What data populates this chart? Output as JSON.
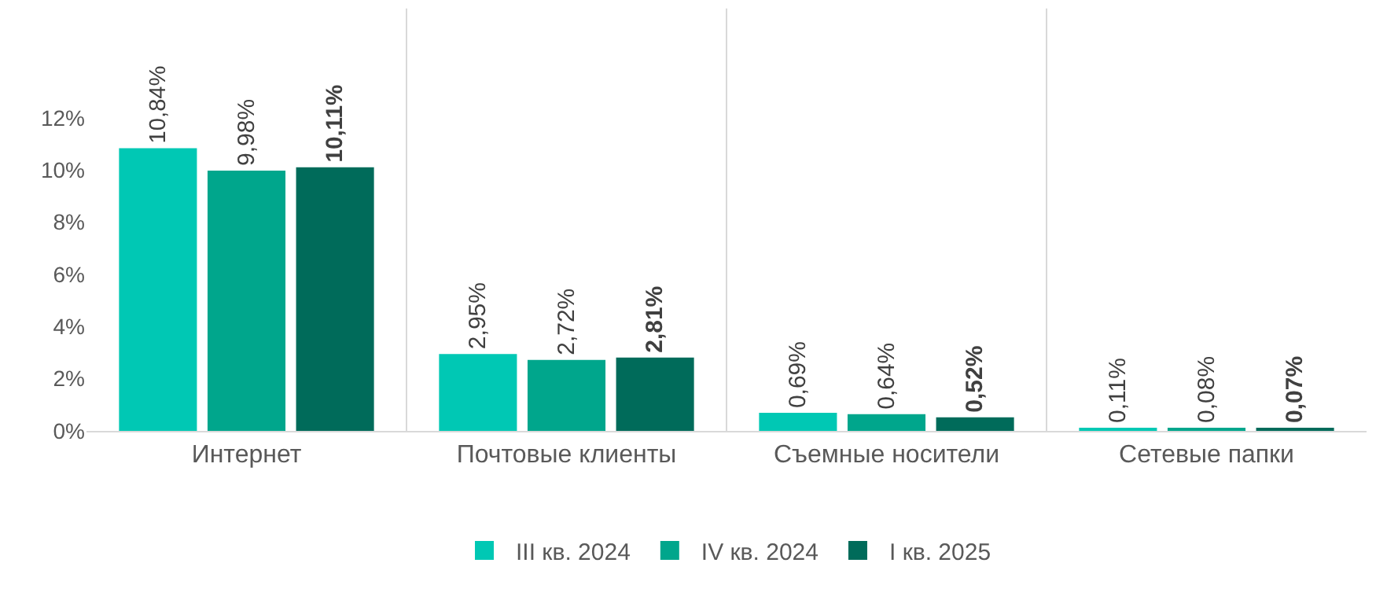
{
  "chart_data": {
    "type": "bar",
    "categories": [
      "Интернет",
      "Почтовые клиенты",
      "Съемные носители",
      "Сетевые папки"
    ],
    "series": [
      {
        "name": "III кв. 2024",
        "color": "#00c8b4",
        "values": [
          10.84,
          2.95,
          0.69,
          0.11
        ],
        "value_labels": [
          "10,84%",
          "2,95%",
          "0,69%",
          "0,11%"
        ]
      },
      {
        "name": "IV кв. 2024",
        "color": "#00a68c",
        "values": [
          9.98,
          2.72,
          0.64,
          0.08
        ],
        "value_labels": [
          "9,98%",
          "2,72%",
          "0,64%",
          "0,08%"
        ]
      },
      {
        "name": "I кв. 2025",
        "color": "#006b5a",
        "values": [
          10.11,
          2.81,
          0.52,
          0.07
        ],
        "value_labels": [
          "10,11%",
          "2,81%",
          "0,52%",
          "0,07%"
        ]
      }
    ],
    "ylim": [
      0,
      12
    ],
    "yticks": [
      {
        "value": 0,
        "label": "0%"
      },
      {
        "value": 2,
        "label": "2%"
      },
      {
        "value": 4,
        "label": "4%"
      },
      {
        "value": 6,
        "label": "6%"
      },
      {
        "value": 8,
        "label": "8%"
      },
      {
        "value": 10,
        "label": "10%"
      },
      {
        "value": 12,
        "label": "12%"
      }
    ],
    "grid": "x",
    "legend": "bottom"
  }
}
